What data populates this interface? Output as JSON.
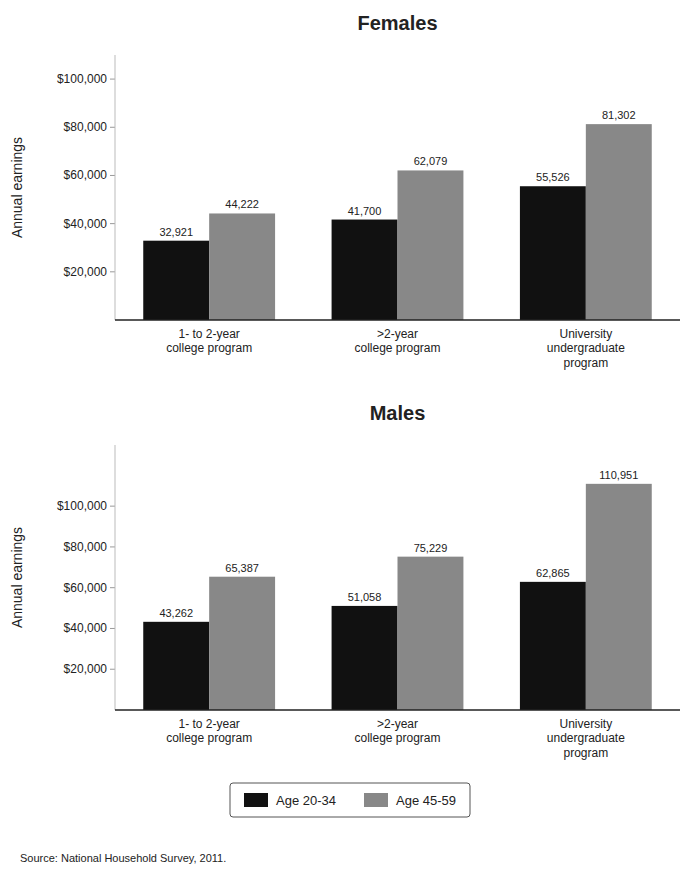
{
  "chart_data": [
    {
      "type": "bar",
      "title": "Females",
      "y_label": "Annual earnings",
      "categories": [
        "1- to 2-year\ncollege program",
        ">2-year\ncollege program",
        "University\nundergraduate\nprogram"
      ],
      "series": [
        {
          "name": "Age 20-34",
          "color": "#111111",
          "values": [
            32921,
            41700,
            55526
          ],
          "value_labels": [
            "32,921",
            "41,700",
            "55,526"
          ]
        },
        {
          "name": "Age 45-59",
          "color": "#888888",
          "values": [
            44222,
            62079,
            81302
          ],
          "value_labels": [
            "44,222",
            "62,079",
            "81,302"
          ]
        }
      ],
      "ylim": [
        0,
        110000
      ],
      "yticks": [
        {
          "value": 20000,
          "label": "$20,000"
        },
        {
          "value": 40000,
          "label": "$40,000"
        },
        {
          "value": 60000,
          "label": "$60,000"
        },
        {
          "value": 80000,
          "label": "$80,000"
        },
        {
          "value": 100000,
          "label": "$100,000"
        }
      ],
      "grid": false,
      "data_labels": true
    },
    {
      "type": "bar",
      "title": "Males",
      "y_label": "Annual earnings",
      "categories": [
        "1- to 2-year\ncollege program",
        ">2-year\ncollege program",
        "University\nundergraduate\nprogram"
      ],
      "series": [
        {
          "name": "Age 20-34",
          "color": "#111111",
          "values": [
            43262,
            51058,
            62865
          ],
          "value_labels": [
            "43,262",
            "51,058",
            "62,865"
          ]
        },
        {
          "name": "Age 45-59",
          "color": "#888888",
          "values": [
            65387,
            75229,
            110951
          ],
          "value_labels": [
            "65,387",
            "75,229",
            "110,951"
          ]
        }
      ],
      "ylim": [
        0,
        130000
      ],
      "yticks": [
        {
          "value": 20000,
          "label": "$20,000"
        },
        {
          "value": 40000,
          "label": "$40,000"
        },
        {
          "value": 60000,
          "label": "$60,000"
        },
        {
          "value": 80000,
          "label": "$80,000"
        },
        {
          "value": 100000,
          "label": "$100,000"
        }
      ],
      "grid": false,
      "data_labels": true,
      "legend": "bottom",
      "source": "Source: National Household Survey, 2011."
    }
  ]
}
